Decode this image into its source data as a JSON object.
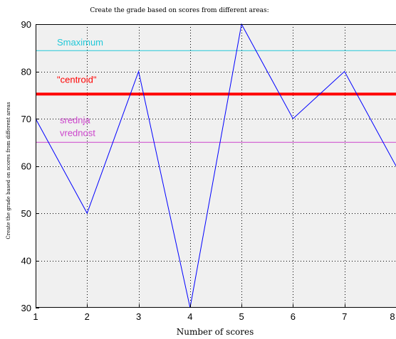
{
  "chart_data": {
    "type": "line",
    "title": "Create the grade based on scores from different areas:",
    "xlabel": "Number of scores",
    "ylabel": "Create the grade based on scores from different areas",
    "xlim": [
      1,
      8
    ],
    "ylim": [
      30,
      90
    ],
    "xticks": [
      "1",
      "2",
      "3",
      "4",
      "5",
      "6",
      "7",
      "8"
    ],
    "yticks": [
      "30",
      "40",
      "50",
      "60",
      "70",
      "80",
      "90"
    ],
    "grid": true,
    "series": [
      {
        "x": [
          1,
          2,
          3,
          4,
          5,
          6,
          7,
          8
        ],
        "values": [
          70,
          50,
          80,
          30,
          90,
          70,
          80,
          60
        ],
        "color": "#0000ff"
      }
    ],
    "reference_lines": [
      {
        "label": "Smaximum",
        "y": 84.4,
        "color": "#22c8d8",
        "width": 1
      },
      {
        "label": "\"centroid\"",
        "y": 75.2,
        "color": "#ff0000",
        "width": 4
      },
      {
        "label": "srednja\nvrednost",
        "y": 65,
        "color": "#cc44cc",
        "width": 1
      }
    ]
  }
}
